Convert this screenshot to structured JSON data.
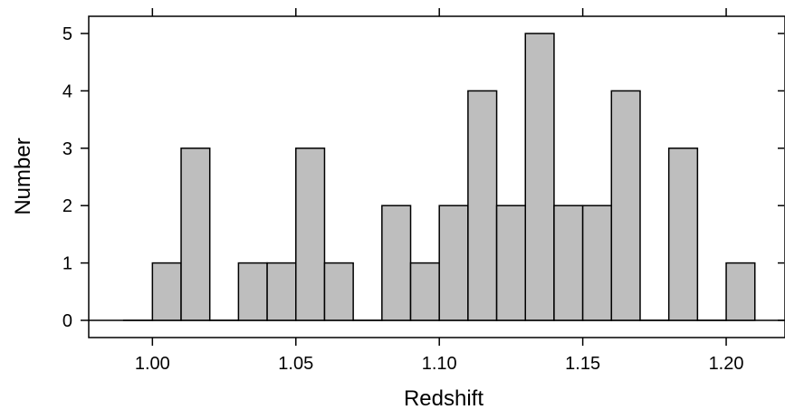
{
  "chart_data": {
    "type": "bar",
    "xlabel": "Redshift",
    "ylabel": "Number",
    "bin_width": 0.01,
    "bins": [
      {
        "start": 0.99,
        "count": 0
      },
      {
        "start": 1.0,
        "count": 1
      },
      {
        "start": 1.01,
        "count": 3
      },
      {
        "start": 1.02,
        "count": 0
      },
      {
        "start": 1.03,
        "count": 1
      },
      {
        "start": 1.04,
        "count": 1
      },
      {
        "start": 1.05,
        "count": 3
      },
      {
        "start": 1.06,
        "count": 1
      },
      {
        "start": 1.07,
        "count": 0
      },
      {
        "start": 1.08,
        "count": 2
      },
      {
        "start": 1.09,
        "count": 1
      },
      {
        "start": 1.1,
        "count": 2
      },
      {
        "start": 1.11,
        "count": 4
      },
      {
        "start": 1.12,
        "count": 2
      },
      {
        "start": 1.13,
        "count": 5
      },
      {
        "start": 1.14,
        "count": 2
      },
      {
        "start": 1.15,
        "count": 2
      },
      {
        "start": 1.16,
        "count": 4
      },
      {
        "start": 1.17,
        "count": 0
      },
      {
        "start": 1.18,
        "count": 3
      },
      {
        "start": 1.19,
        "count": 0
      },
      {
        "start": 1.2,
        "count": 1
      }
    ],
    "xticks": [
      "1.00",
      "1.05",
      "1.10",
      "1.15",
      "1.20"
    ],
    "yticks": [
      "0",
      "1",
      "2",
      "3",
      "4",
      "5"
    ],
    "xlim": [
      0.9778,
      1.2205
    ],
    "ylim": [
      -0.3,
      5.3
    ],
    "grid": false,
    "bar_fill": "#bebebe",
    "bar_stroke": "#000000"
  }
}
